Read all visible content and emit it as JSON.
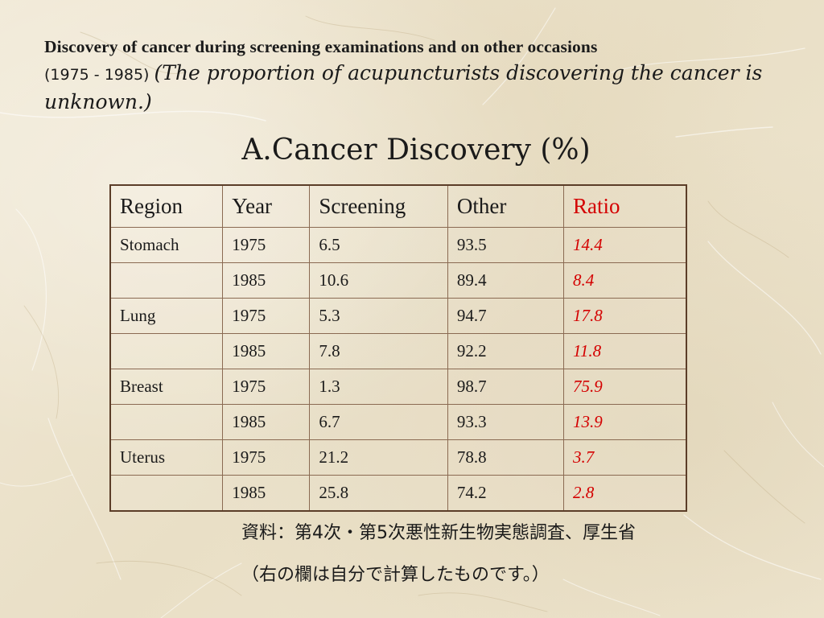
{
  "heading": {
    "line1": "Discovery of cancer during screening examinations and on other occasions",
    "years": "(1975 - 1985)",
    "note": "(The proportion of acupuncturists discovering the cancer is unknown.)"
  },
  "title": "A.Cancer Discovery (%)",
  "table": {
    "headers": {
      "region": "Region",
      "year": "Year",
      "screening": "Screening",
      "other": "Other",
      "ratio": "Ratio"
    },
    "rows": [
      {
        "region": "Stomach",
        "year": "1975",
        "screening": "6.5",
        "other": "93.5",
        "ratio": "14.4"
      },
      {
        "region": "",
        "year": "1985",
        "screening": "10.6",
        "other": "89.4",
        "ratio": "8.4"
      },
      {
        "region": "Lung",
        "year": "1975",
        "screening": "5.3",
        "other": "94.7",
        "ratio": "17.8"
      },
      {
        "region": "",
        "year": "1985",
        "screening": "7.8",
        "other": "92.2",
        "ratio": "11.8"
      },
      {
        "region": "Breast",
        "year": "1975",
        "screening": "1.3",
        "other": "98.7",
        "ratio": "75.9"
      },
      {
        "region": "",
        "year": "1985",
        "screening": "6.7",
        "other": "93.3",
        "ratio": "13.9"
      },
      {
        "region": "Uterus",
        "year": "1975",
        "screening": "21.2",
        "other": "78.8",
        "ratio": "3.7"
      },
      {
        "region": "",
        "year": "1985",
        "screening": "25.8",
        "other": "74.2",
        "ratio": "2.8"
      }
    ]
  },
  "source": {
    "line1": "資料：第4次・第5次悪性新生物実態調査、厚生省",
    "line2": "（右の欄は自分で計算したものです。）"
  },
  "colors": {
    "background": "#efe7d3",
    "text": "#1a1a1a",
    "ratio": "#d40000",
    "table_border": "#5b3d28"
  }
}
